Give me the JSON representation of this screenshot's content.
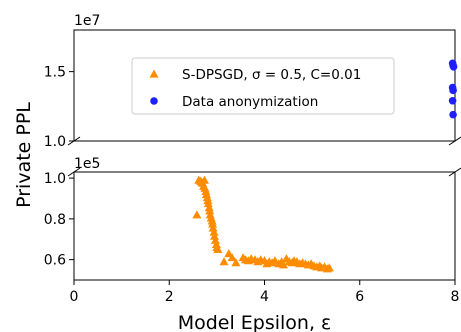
{
  "chart_data": {
    "type": "scatter",
    "title": "",
    "xlabel": "Model Epsilon, ε",
    "ylabel": "Private PPL",
    "xlim": [
      0,
      8
    ],
    "x_ticks": [
      "0",
      "2",
      "4",
      "6",
      "8"
    ],
    "broken_y_axis": true,
    "top_panel": {
      "ylim": [
        10000000,
        18000000
      ],
      "y_ticks": [
        {
          "value": 10000000,
          "label": "1.0"
        },
        {
          "value": 15000000,
          "label": "1.5"
        }
      ],
      "offset_label": "1e7"
    },
    "bottom_panel": {
      "ylim": [
        50000,
        103000
      ],
      "y_ticks": [
        {
          "value": 100000,
          "label": "1.0"
        },
        {
          "value": 80000,
          "label": "0.8"
        },
        {
          "value": 60000,
          "label": "0.6"
        }
      ],
      "offset_label": "1e5"
    },
    "legend": {
      "placement": "upper center"
    },
    "series": [
      {
        "name": "S-DPSGD, σ = 0.5, C=0.01",
        "marker": "triangle",
        "color": "#ff8c00",
        "panel": "bottom",
        "points": [
          [
            2.58,
            82000
          ],
          [
            2.62,
            99000
          ],
          [
            2.66,
            98500
          ],
          [
            2.68,
            98000
          ],
          [
            2.7,
            97500
          ],
          [
            2.72,
            96000
          ],
          [
            2.74,
            99000
          ],
          [
            2.75,
            95000
          ],
          [
            2.77,
            93500
          ],
          [
            2.78,
            92000
          ],
          [
            2.8,
            90500
          ],
          [
            2.81,
            89000
          ],
          [
            2.82,
            87500
          ],
          [
            2.84,
            85500
          ],
          [
            2.85,
            84000
          ],
          [
            2.86,
            82000
          ],
          [
            2.88,
            80500
          ],
          [
            2.9,
            79000
          ],
          [
            2.91,
            77500
          ],
          [
            2.92,
            75500
          ],
          [
            2.94,
            73500
          ],
          [
            2.95,
            71500
          ],
          [
            2.97,
            69500
          ],
          [
            2.99,
            67500
          ],
          [
            3.0,
            66000
          ],
          [
            3.02,
            65000
          ],
          [
            3.15,
            59000
          ],
          [
            3.25,
            63000
          ],
          [
            3.32,
            61000
          ],
          [
            3.4,
            58500
          ],
          [
            3.55,
            61000
          ],
          [
            3.6,
            60000
          ],
          [
            3.66,
            59500
          ],
          [
            3.72,
            60500
          ],
          [
            3.8,
            60000
          ],
          [
            3.86,
            59000
          ],
          [
            3.92,
            60000
          ],
          [
            4.0,
            59500
          ],
          [
            4.05,
            58000
          ],
          [
            4.1,
            59000
          ],
          [
            4.16,
            58500
          ],
          [
            4.22,
            59500
          ],
          [
            4.3,
            58000
          ],
          [
            4.36,
            59000
          ],
          [
            4.4,
            57500
          ],
          [
            4.46,
            60500
          ],
          [
            4.52,
            59000
          ],
          [
            4.58,
            58500
          ],
          [
            4.62,
            59500
          ],
          [
            4.68,
            59000
          ],
          [
            4.74,
            58000
          ],
          [
            4.8,
            58500
          ],
          [
            4.86,
            58000
          ],
          [
            4.92,
            57500
          ],
          [
            4.98,
            58000
          ],
          [
            5.04,
            57000
          ],
          [
            5.1,
            56500
          ],
          [
            5.16,
            57000
          ],
          [
            5.2,
            56000
          ],
          [
            5.26,
            56500
          ],
          [
            5.32,
            55500
          ],
          [
            5.36,
            56000
          ]
        ]
      },
      {
        "name": "Data anonymization",
        "marker": "circle",
        "color": "#1f1fff",
        "panel": "top",
        "points": [
          [
            7.95,
            15600000
          ],
          [
            7.96,
            15450000
          ],
          [
            7.97,
            15350000
          ],
          [
            7.95,
            13850000
          ],
          [
            7.96,
            13650000
          ],
          [
            7.95,
            12900000
          ],
          [
            7.96,
            11900000
          ]
        ]
      }
    ]
  }
}
